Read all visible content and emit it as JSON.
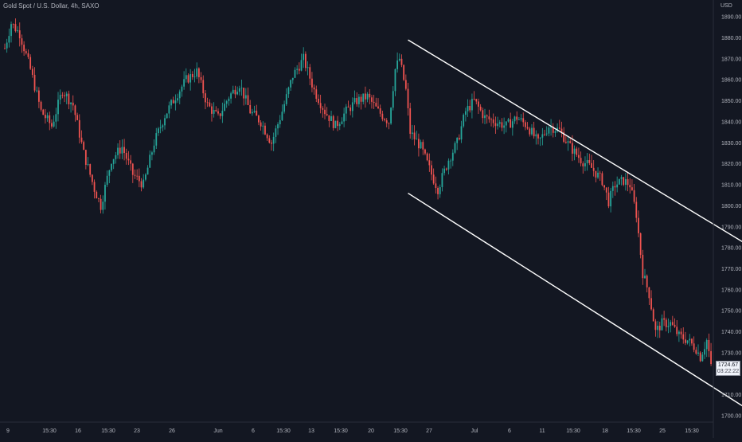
{
  "symbol": {
    "title": "Gold Spot / U.S. Dollar, 4h, SAXO",
    "currency": "USD"
  },
  "colors": {
    "background": "#131722",
    "up": "#26a69a",
    "down": "#ef5350",
    "axis_text": "#b2b5be",
    "channel": "#ffffff"
  },
  "last_price": {
    "value": "1724.67",
    "countdown": "03:22:22"
  },
  "chart_data": {
    "type": "candlestick",
    "x_axis": {
      "ticks": [
        "9",
        "15:30",
        "16",
        "15:30",
        "23",
        "26",
        "Jun",
        "6",
        "15:30",
        "13",
        "15:30",
        "20",
        "15:30",
        "27",
        "Jul",
        "6",
        "11",
        "15:30",
        "18",
        "15:30",
        "25",
        "15:30"
      ]
    },
    "y_axis": {
      "ticks": [
        1890,
        1880,
        1870,
        1860,
        1850,
        1840,
        1830,
        1820,
        1810,
        1800,
        1790,
        1780,
        1770,
        1760,
        1750,
        1740,
        1730,
        1710,
        1700
      ],
      "ylim": [
        1697,
        1898
      ]
    },
    "grid": false,
    "series": [
      {
        "anchors": [
          [
            0,
            1875
          ],
          [
            3,
            1887
          ],
          [
            7,
            1882
          ],
          [
            12,
            1865
          ],
          [
            17,
            1845
          ],
          [
            22,
            1838
          ],
          [
            27,
            1855
          ],
          [
            32,
            1848
          ],
          [
            37,
            1825
          ],
          [
            42,
            1808
          ],
          [
            45,
            1800
          ],
          [
            50,
            1822
          ],
          [
            55,
            1828
          ],
          [
            60,
            1815
          ],
          [
            65,
            1810
          ],
          [
            70,
            1830
          ],
          [
            75,
            1843
          ],
          [
            80,
            1852
          ],
          [
            85,
            1860
          ],
          [
            90,
            1864
          ],
          [
            95,
            1848
          ],
          [
            100,
            1842
          ],
          [
            105,
            1852
          ],
          [
            110,
            1858
          ],
          [
            115,
            1845
          ],
          [
            120,
            1840
          ],
          [
            125,
            1830
          ],
          [
            130,
            1845
          ],
          [
            135,
            1862
          ],
          [
            140,
            1870
          ],
          [
            145,
            1855
          ],
          [
            150,
            1845
          ],
          [
            155,
            1838
          ],
          [
            160,
            1845
          ],
          [
            165,
            1850
          ],
          [
            170,
            1852
          ],
          [
            175,
            1845
          ],
          [
            180,
            1840
          ],
          [
            183,
            1865
          ],
          [
            185,
            1870
          ],
          [
            188,
            1855
          ],
          [
            190,
            1835
          ],
          [
            195,
            1828
          ],
          [
            200,
            1815
          ],
          [
            203,
            1808
          ],
          [
            208,
            1822
          ],
          [
            212,
            1830
          ],
          [
            216,
            1845
          ],
          [
            220,
            1850
          ],
          [
            225,
            1842
          ],
          [
            230,
            1840
          ],
          [
            235,
            1838
          ],
          [
            240,
            1842
          ],
          [
            245,
            1838
          ],
          [
            250,
            1830
          ],
          [
            255,
            1838
          ],
          [
            260,
            1836
          ],
          [
            265,
            1828
          ],
          [
            270,
            1822
          ],
          [
            275,
            1818
          ],
          [
            280,
            1812
          ],
          [
            283,
            1802
          ],
          [
            286,
            1810
          ],
          [
            290,
            1812
          ],
          [
            293,
            1810
          ],
          [
            296,
            1796
          ],
          [
            299,
            1768
          ],
          [
            302,
            1758
          ],
          [
            305,
            1740
          ],
          [
            308,
            1744
          ],
          [
            312,
            1744
          ],
          [
            316,
            1738
          ],
          [
            320,
            1736
          ],
          [
            324,
            1732
          ],
          [
            326,
            1728
          ],
          [
            329,
            1736
          ],
          [
            331,
            1724.67
          ]
        ]
      }
    ],
    "annotations": [
      {
        "type": "parallel-channel",
        "upper": [
          [
            189,
            1879
          ],
          [
            432,
            1730
          ]
        ],
        "lower": [
          [
            189,
            1806
          ],
          [
            353,
            1700
          ]
        ]
      }
    ]
  }
}
